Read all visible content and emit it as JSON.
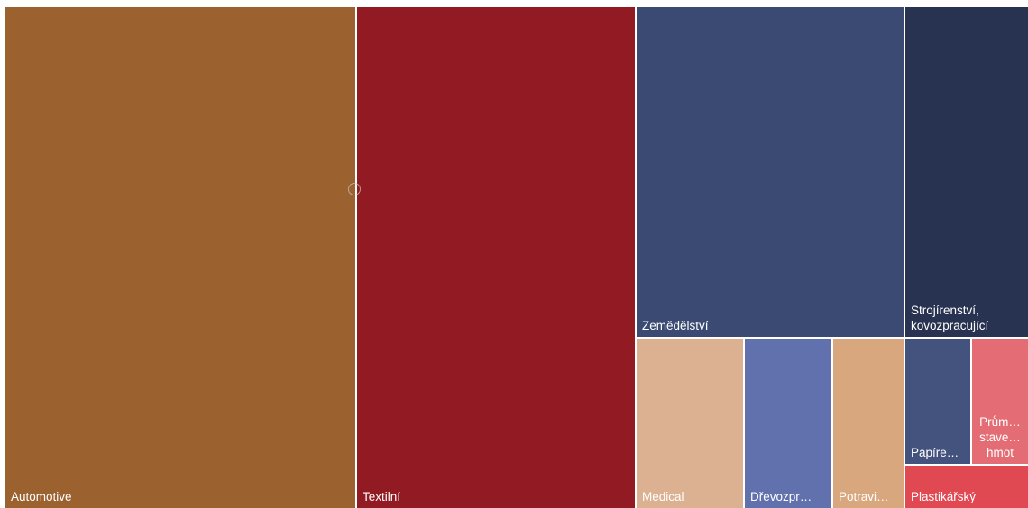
{
  "chart_data": {
    "type": "treemap",
    "nodes": [
      {
        "name": "Automotive",
        "label": "Automotive",
        "color": "#9b612f"
      },
      {
        "name": "Textilní",
        "label": "Textilní",
        "color": "#921a23"
      },
      {
        "name": "Zemědělství",
        "label": "Zemědělství",
        "color": "#3a4a72"
      },
      {
        "name": "Strojírenství, kovozpracující",
        "label": "Strojírenství,\nkovozpracující",
        "color": "#283251"
      },
      {
        "name": "Medical",
        "label": "Medical",
        "color": "#dcb192"
      },
      {
        "name": "Dřevozpracující",
        "label": "Dřevozpr…",
        "color": "#6071ad"
      },
      {
        "name": "Potravinářský",
        "label": "Potravi…",
        "color": "#d8a77e"
      },
      {
        "name": "Papírenský",
        "label": "Papíre…",
        "color": "#44527e"
      },
      {
        "name": "Průmysl stavebních hmot",
        "label": "Prům…\nstave…\nhmot",
        "color": "#e46c74"
      },
      {
        "name": "Plastikářský",
        "label": "Plastikářský",
        "color": "#e04852"
      }
    ]
  }
}
